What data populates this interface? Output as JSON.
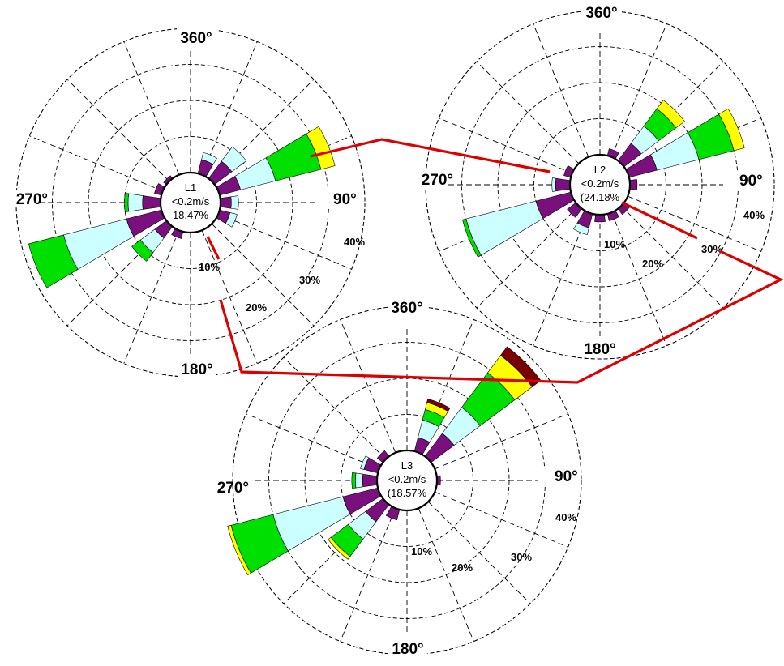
{
  "chart_data": {
    "type": "windrose",
    "direction_labels": [
      "360°",
      "90°",
      "180°",
      "270°"
    ],
    "ring_labels": [
      "10%",
      "20%",
      "30%",
      "40%"
    ],
    "speed_bins": [
      {
        "color": "#7a0f7e"
      },
      {
        "color": "#ccffff"
      },
      {
        "color": "#00e000"
      },
      {
        "color": "#ffff00"
      },
      {
        "color": "#7a0000"
      }
    ],
    "connector_color": "#dd0000",
    "roses": [
      {
        "name": "L1",
        "calm_label": "<0.2m/s",
        "calm_value": "18.47%",
        "petals": [
          {
            "dir": 22.5,
            "segments": [
              2.0,
              1.0
            ]
          },
          {
            "dir": 45,
            "segments": [
              3.0,
              2.5
            ]
          },
          {
            "dir": 67.5,
            "segments": [
              3.0,
              5.0,
              6.5,
              2.0
            ]
          },
          {
            "dir": 90,
            "segments": [
              1.5,
              1.0
            ]
          },
          {
            "dir": 112.5,
            "segments": [
              1.5,
              1.0
            ]
          },
          {
            "dir": 202.5,
            "segments": [
              1.0
            ]
          },
          {
            "dir": 225,
            "segments": [
              2.0,
              2.5,
              1.5
            ]
          },
          {
            "dir": 247.5,
            "segments": [
              5.0,
              9.0,
              5.0
            ]
          },
          {
            "dir": 270,
            "segments": [
              2.5,
              2.0,
              0.5
            ]
          },
          {
            "dir": 292.5,
            "segments": [
              1.0
            ]
          },
          {
            "dir": 315,
            "segments": [
              0.5
            ]
          }
        ]
      },
      {
        "name": "L2",
        "calm_label": "<0.2m/s",
        "calm_value": "(24.18%",
        "petals": [
          {
            "dir": 22.5,
            "segments": [
              1.0
            ]
          },
          {
            "dir": 45,
            "segments": [
              3.0,
              3.0,
              3.0,
              1.5
            ]
          },
          {
            "dir": 67.5,
            "segments": [
              4.0,
              6.0,
              5.0,
              1.5
            ]
          },
          {
            "dir": 90,
            "segments": [
              1.0
            ]
          },
          {
            "dir": 135,
            "segments": [
              1.0
            ]
          },
          {
            "dir": 157.5,
            "segments": [
              1.0
            ]
          },
          {
            "dir": 180,
            "segments": [
              1.0
            ]
          },
          {
            "dir": 202.5,
            "segments": [
              2.0,
              1.0
            ]
          },
          {
            "dir": 225,
            "segments": [
              1.5
            ]
          },
          {
            "dir": 247.5,
            "segments": [
              5.0,
              10.0,
              0.5
            ]
          },
          {
            "dir": 270,
            "segments": [
              2.0,
              0.5
            ]
          },
          {
            "dir": 292.5,
            "segments": [
              1.0
            ]
          }
        ]
      },
      {
        "name": "L3",
        "calm_label": "<0.2m/s",
        "calm_value": "(18.57%",
        "petals": [
          {
            "dir": 22.5,
            "segments": [
              2.0,
              2.5,
              1.5,
              1.0,
              0.5
            ]
          },
          {
            "dir": 45,
            "segments": [
              4.0,
              4.5,
              6.0,
              3.0,
              1.5
            ]
          },
          {
            "dir": 90,
            "segments": [
              0.5
            ]
          },
          {
            "dir": 202.5,
            "segments": [
              1.5
            ]
          },
          {
            "dir": 225,
            "segments": [
              3.0,
              3.0,
              3.0,
              0.5
            ]
          },
          {
            "dir": 247.5,
            "segments": [
              5.0,
              10.0,
              6.0,
              0.5
            ]
          },
          {
            "dir": 270,
            "segments": [
              2.0,
              1.0,
              0.5
            ]
          },
          {
            "dir": 292.5,
            "segments": [
              2.0,
              0.5
            ]
          },
          {
            "dir": 315,
            "segments": [
              1.0
            ]
          }
        ]
      }
    ]
  }
}
